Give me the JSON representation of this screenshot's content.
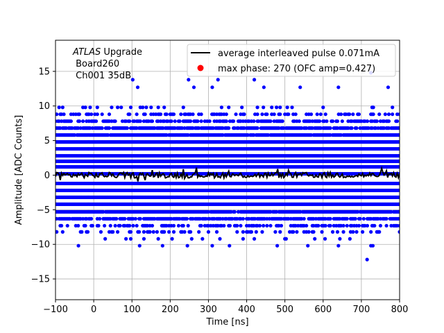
{
  "chart_data": {
    "type": "scatter",
    "title": "",
    "xlabel": "Time [ns]",
    "ylabel": "Amplitude [ADC Counts]",
    "xlim": [
      -100,
      800
    ],
    "ylim": [
      -18,
      19.5
    ],
    "grid": true,
    "x_ticks": [
      -100,
      0,
      100,
      200,
      300,
      400,
      500,
      600,
      700,
      800
    ],
    "y_ticks": [
      -15,
      -10,
      -5,
      0,
      5,
      10,
      15
    ],
    "annotation": {
      "experiment_italic": "ATLAS",
      "experiment_rest": " Upgrade",
      "board": " Board260",
      "channel": " Ch001 35dB"
    },
    "legend": {
      "placement": "top-right",
      "entries": [
        {
          "label": "average interleaved pulse 0.071mA",
          "marker": "line",
          "color": "#000000"
        },
        {
          "label": "max phase: 270 (OFC amp=0.427)",
          "marker": "dot",
          "color": "#ff0000"
        }
      ]
    },
    "series": [
      {
        "name": "",
        "kind": "scatter",
        "color": "#0000ff",
        "x_start": -100,
        "x_end": 800,
        "x_step": 3.125,
        "levels": [
          -9.2,
          -8.2,
          -7.3,
          -6.3,
          -5.3,
          -4.2,
          -3.2,
          -2.2,
          -1.2,
          0.2,
          1.2,
          2.0,
          2.8,
          3.8,
          4.8,
          5.8,
          6.8,
          7.8,
          8.8,
          9.8
        ],
        "level_fill": [
          0.04,
          0.22,
          0.45,
          0.75,
          0.95,
          1,
          1,
          1,
          1,
          1,
          1,
          1,
          1,
          1,
          1,
          0.95,
          0.85,
          0.55,
          0.3,
          0.1
        ],
        "outliers": [
          [
            102,
            13.8
          ],
          [
            115,
            12.7
          ],
          [
            248,
            13.8
          ],
          [
            262,
            12.7
          ],
          [
            325,
            13.8
          ],
          [
            310,
            12.7
          ],
          [
            420,
            13.8
          ],
          [
            445,
            12.7
          ],
          [
            540,
            12.7
          ],
          [
            640,
            12.7
          ],
          [
            725,
            14.8
          ],
          [
            770,
            12.7
          ],
          [
            -40,
            -10.2
          ],
          [
            120,
            -10.2
          ],
          [
            180,
            -10.2
          ],
          [
            245,
            -10.2
          ],
          [
            310,
            -10.2
          ],
          [
            355,
            -10.2
          ],
          [
            480,
            -10.2
          ],
          [
            560,
            -10.2
          ],
          [
            640,
            -10.2
          ],
          [
            725,
            -10.2
          ],
          [
            730,
            -10.2
          ],
          [
            715,
            -12.2
          ],
          [
            30,
            -9.2
          ],
          [
            205,
            -9.2
          ],
          [
            330,
            -9.2
          ],
          [
            420,
            -9.2
          ],
          [
            500,
            -9.2
          ],
          [
            605,
            -9.2
          ],
          [
            670,
            -9.2
          ]
        ]
      },
      {
        "name": "average interleaved pulse 0.071mA",
        "kind": "line",
        "color": "#000000",
        "x_start": -100,
        "x_end": 800,
        "x_step": 3.125,
        "mean": 0.0,
        "amplitude": 0.4
      }
    ]
  }
}
